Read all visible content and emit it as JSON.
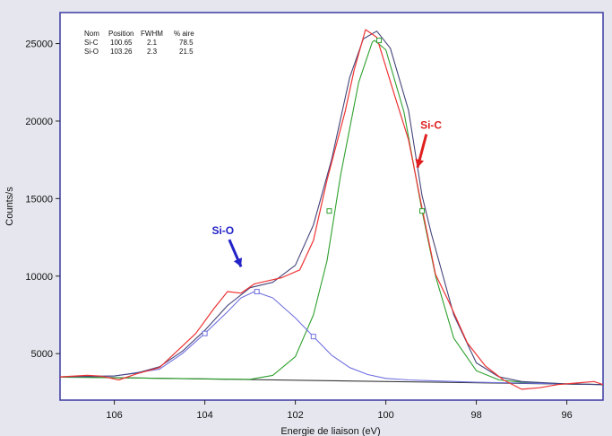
{
  "chart_data": {
    "type": "line",
    "xlabel": "Energie de liaison (eV)",
    "ylabel": "Counts/s",
    "xlim": [
      107.2,
      95.2
    ],
    "ylim": [
      2000,
      27000
    ],
    "x_reversed": true,
    "xticks": [
      106,
      104,
      102,
      100,
      98,
      96
    ],
    "yticks": [
      5000,
      10000,
      15000,
      20000,
      25000
    ],
    "grid": false,
    "background": "#e6e6ef",
    "plot_background": "#ffffff",
    "frame_color": "#3a3aa0",
    "table": {
      "headers": [
        "Nom",
        "Position",
        "FWHM",
        "% aire"
      ],
      "rows": [
        [
          "Si-C",
          "100.65",
          "2.1",
          "78.5"
        ],
        [
          "Si-O",
          "103.26",
          "2.3",
          "21.5"
        ]
      ]
    },
    "annotations": [
      {
        "text": "Si-C",
        "color": "#e02020",
        "x": 99.0,
        "y": 19500,
        "arrow_to": [
          99.3,
          17000
        ]
      },
      {
        "text": "Si-O",
        "color": "#2323c8",
        "x": 103.6,
        "y": 12700,
        "arrow_to": [
          103.2,
          10600
        ]
      }
    ],
    "series": [
      {
        "role": "background",
        "color": "#333333",
        "x": [
          107.2,
          95.2
        ],
        "y": [
          3500,
          3000
        ]
      },
      {
        "role": "component-Si-C",
        "color": "#2ea02e",
        "x": [
          107.2,
          104,
          103,
          102.5,
          102,
          101.6,
          101.3,
          101,
          100.6,
          100.3,
          100.25,
          100.0,
          99.6,
          99.2,
          98.9,
          98.5,
          98,
          97.5,
          97,
          96,
          95.2
        ],
        "y": [
          3480,
          3370,
          3340,
          3600,
          4800,
          7500,
          11000,
          16500,
          22500,
          25100,
          25200,
          24600,
          20600,
          14200,
          10000,
          6000,
          3900,
          3300,
          3150,
          3050,
          3000
        ],
        "markers": [
          [
            101.25,
            14200
          ],
          [
            100.15,
            25200
          ],
          [
            99.2,
            14200
          ]
        ]
      },
      {
        "role": "component-Si-O",
        "color": "#7070e0",
        "x": [
          107.2,
          106,
          105,
          104.5,
          104,
          103.5,
          103.2,
          102.9,
          102.5,
          102,
          101.6,
          101.2,
          100.8,
          100.4,
          100,
          99.5,
          99,
          98,
          95.2
        ],
        "y": [
          3500,
          3550,
          4000,
          5000,
          6300,
          7700,
          8600,
          9000,
          8600,
          7300,
          6100,
          4900,
          4100,
          3650,
          3400,
          3300,
          3250,
          3150,
          3000
        ],
        "markers": [
          [
            104.0,
            6300
          ],
          [
            102.85,
            9000
          ],
          [
            101.6,
            6100
          ]
        ]
      },
      {
        "role": "envelope",
        "color": "#44447a",
        "x": [
          107.2,
          106,
          105.5,
          105,
          104.5,
          104,
          103.5,
          103,
          102.5,
          102,
          101.6,
          101.2,
          100.8,
          100.5,
          100.2,
          99.9,
          99.5,
          99.2,
          99,
          98.5,
          98,
          97.5,
          97,
          96,
          95.2
        ],
        "y": [
          3500,
          3560,
          3750,
          4150,
          5150,
          6500,
          8100,
          9250,
          9600,
          10700,
          13300,
          17500,
          22800,
          25300,
          25800,
          24700,
          20700,
          15200,
          12800,
          7500,
          4400,
          3500,
          3200,
          3050,
          3000
        ]
      },
      {
        "role": "raw-data",
        "color": "#ee3333",
        "x": [
          107.2,
          106.6,
          106.3,
          105.9,
          105.5,
          105.0,
          104.6,
          104.2,
          103.8,
          103.5,
          103.2,
          102.9,
          102.6,
          102.3,
          101.9,
          101.6,
          101.3,
          100.9,
          100.7,
          100.45,
          100.2,
          100.0,
          99.8,
          99.5,
          99.2,
          98.9,
          98.6,
          98.2,
          97.8,
          97.4,
          97.0,
          96.6,
          96.2,
          95.8,
          95.4,
          95.2
        ],
        "y": [
          3500,
          3600,
          3550,
          3300,
          3700,
          4100,
          5200,
          6300,
          7900,
          9000,
          8900,
          9500,
          9700,
          9900,
          10400,
          12300,
          16200,
          20600,
          23300,
          25900,
          25400,
          23500,
          21600,
          18800,
          14400,
          10100,
          8300,
          5700,
          4200,
          3300,
          2700,
          2800,
          3000,
          3100,
          3200,
          3000
        ]
      }
    ]
  }
}
